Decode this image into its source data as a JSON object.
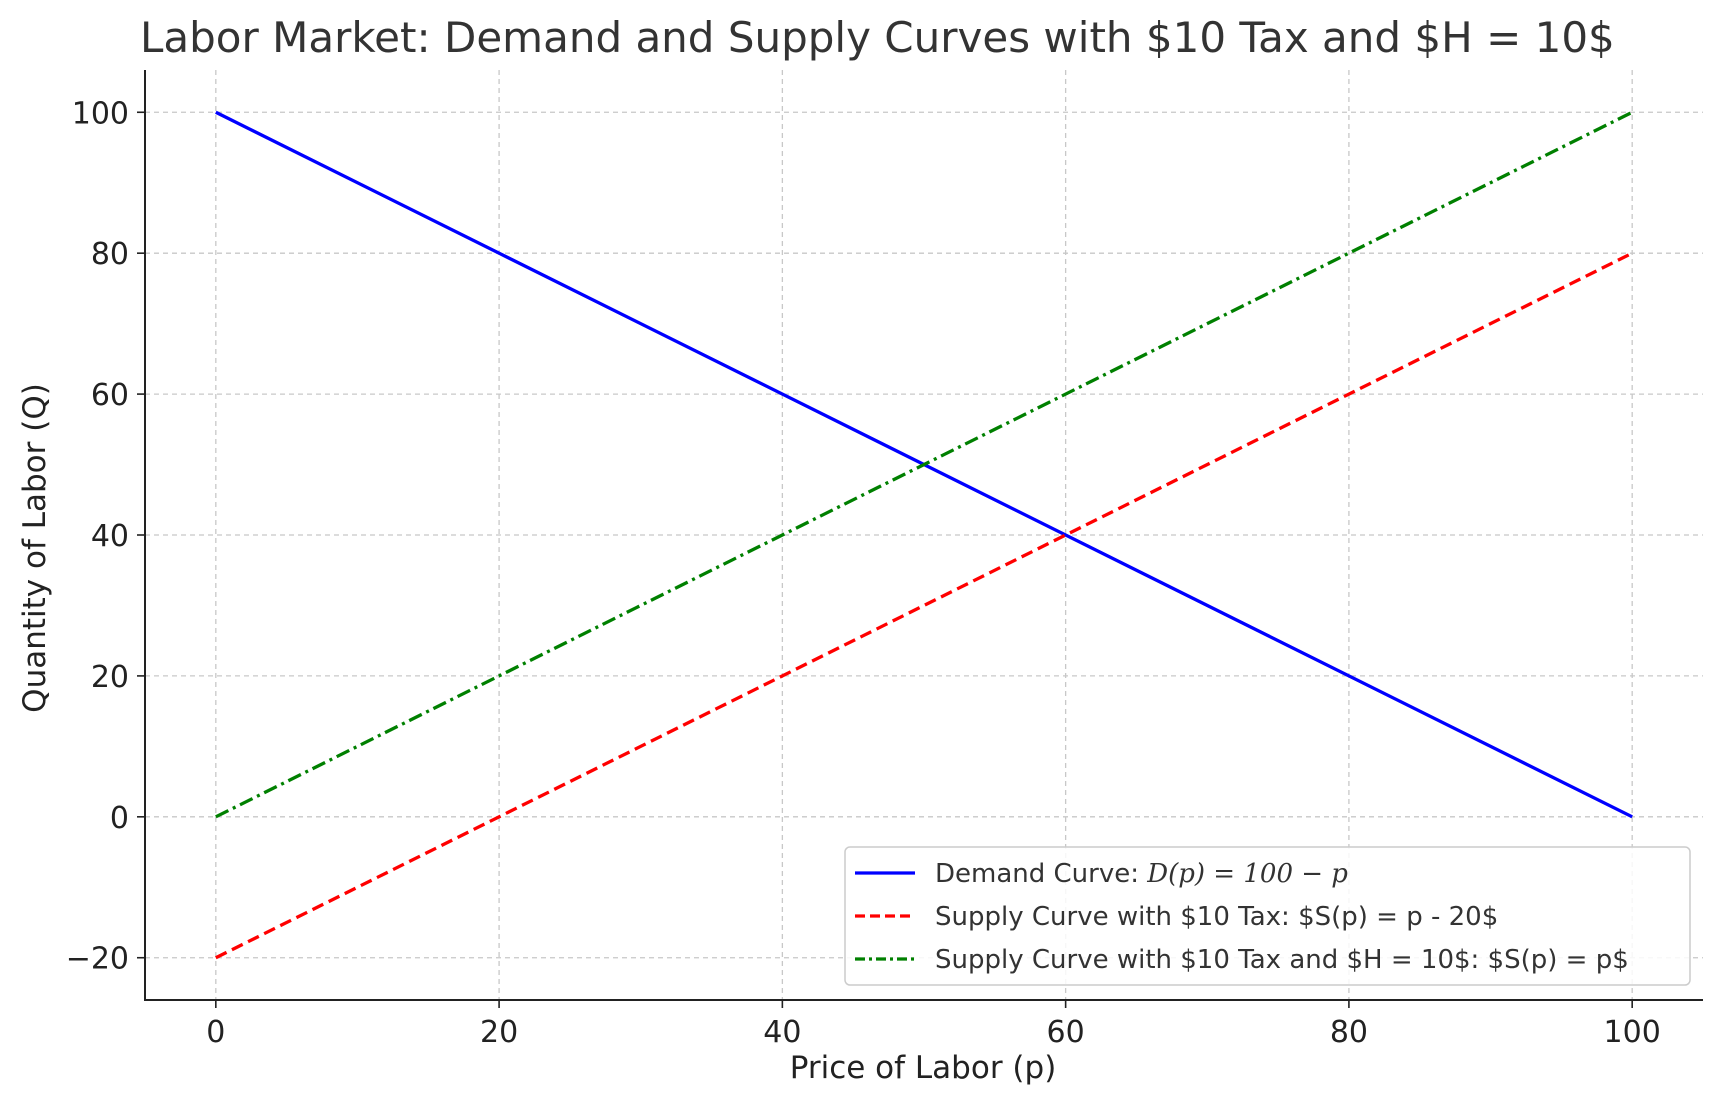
{
  "chart_data": {
    "type": "line",
    "title": "Labor Market: Demand and Supply Curves with $10 Tax and $H = 10$",
    "xlabel": "Price of Labor (p)",
    "ylabel": "Quantity of Labor (Q)",
    "xlim": [
      -5,
      105
    ],
    "ylim": [
      -26,
      106
    ],
    "xticks": [
      0,
      20,
      40,
      60,
      80,
      100
    ],
    "yticks": [
      -20,
      0,
      20,
      40,
      60,
      80,
      100
    ],
    "grid": true,
    "legend_position": "lower-right",
    "series": [
      {
        "name": "Demand Curve: D(p) = 100 − p",
        "legend_parts": {
          "prefix": "Demand Curve: ",
          "math": "D(p) = 100 − p"
        },
        "x": [
          0,
          100
        ],
        "y": [
          100,
          0
        ],
        "color": "#0000ff",
        "style": "solid"
      },
      {
        "name": "Supply Curve with $10 Tax: $S(p) = p - 20$",
        "x": [
          0,
          100
        ],
        "y": [
          -20,
          80
        ],
        "color": "#ff0000",
        "style": "dashed"
      },
      {
        "name": "Supply Curve with $10 Tax and $H = 10$: $S(p) = p$",
        "x": [
          0,
          100
        ],
        "y": [
          0,
          100
        ],
        "color": "#008000",
        "style": "dashdot"
      }
    ]
  }
}
